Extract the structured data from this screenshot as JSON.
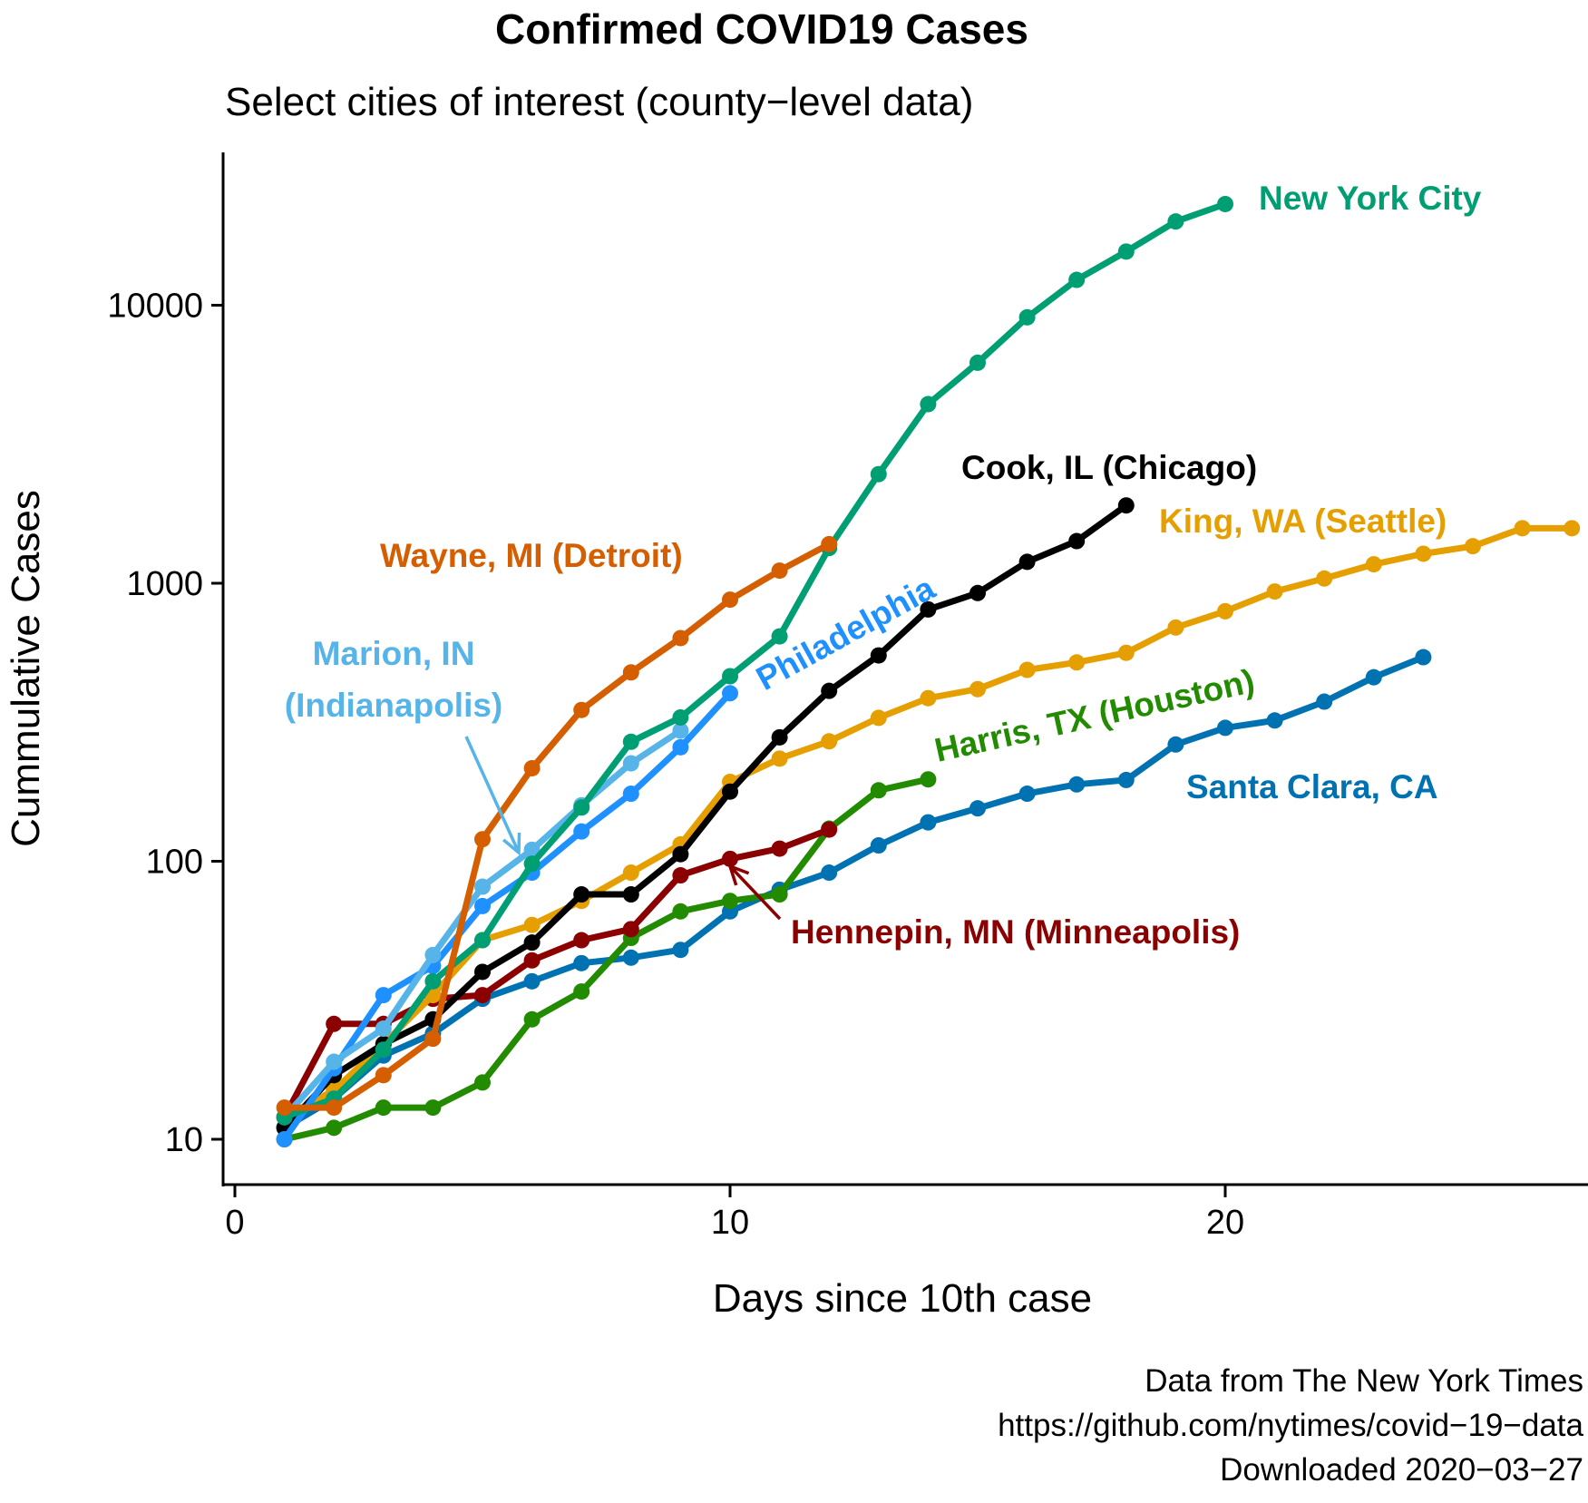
{
  "chart_data": {
    "type": "line",
    "title": "Confirmed COVID19 Cases",
    "subtitle": "Select cities of interest (county−level data)",
    "xlabel": "Days since 10th case",
    "ylabel": "Cummulative Cases",
    "x_ticks": [
      "0",
      "10",
      "20"
    ],
    "y_ticks": [
      "10",
      "100",
      "1000",
      "10000"
    ],
    "x_scale": "linear",
    "y_scale": "log10",
    "xlim": [
      -0.2,
      27.5
    ],
    "ylim": [
      8.1,
      30000
    ],
    "grid": false,
    "legend": "none (direct labels)",
    "caption": [
      "Data from The New York Times",
      "https://github.com/nytimes/covid−19−data",
      "Downloaded 2020−03−27"
    ],
    "series": [
      {
        "name": "Santa Clara, CA",
        "color": "#0072B2",
        "x": [
          1,
          2,
          3,
          4,
          5,
          6,
          7,
          8,
          9,
          10,
          11,
          12,
          13,
          14,
          15,
          16,
          17,
          18,
          19,
          20,
          21,
          22,
          23,
          24
        ],
        "y": [
          11,
          14,
          20,
          24,
          32,
          37,
          43,
          45,
          48,
          66,
          79,
          91,
          114,
          138,
          155,
          175,
          189,
          196,
          263,
          302,
          321,
          375,
          459,
          542
        ]
      },
      {
        "name": "Harris, TX (Houston)",
        "color": "#228B00",
        "x": [
          1,
          2,
          3,
          4,
          5,
          6,
          7,
          8,
          9,
          10,
          11,
          12,
          13,
          14
        ],
        "y": [
          10,
          11,
          13,
          13,
          16,
          27,
          34,
          53,
          66,
          72,
          76,
          131,
          180,
          197
        ]
      },
      {
        "name": "Hennepin, MN (Minneapolis)",
        "color": "#8B0000",
        "x": [
          1,
          2,
          3,
          4,
          5,
          6,
          7,
          8,
          9,
          10,
          11,
          12
        ],
        "y": [
          12,
          26,
          26,
          32,
          33,
          44,
          52,
          57,
          89,
          102,
          111,
          130
        ]
      },
      {
        "name": "King, WA (Seattle)",
        "color": "#E69F00",
        "x": [
          1,
          2,
          3,
          4,
          5,
          6,
          7,
          8,
          9,
          10,
          11,
          12,
          13,
          14,
          15,
          16,
          17,
          18,
          19,
          20,
          21,
          22,
          23,
          24,
          25,
          26,
          27
        ],
        "y": [
          12,
          15,
          22,
          33,
          52,
          59,
          72,
          91,
          115,
          193,
          234,
          270,
          328,
          386,
          416,
          488,
          519,
          562,
          693,
          793,
          934,
          1040,
          1170,
          1277,
          1359,
          1577,
          1577
        ]
      },
      {
        "name": "Cook, IL (Chicago)",
        "color": "#000000",
        "x": [
          1,
          2,
          3,
          4,
          5,
          6,
          7,
          8,
          9,
          10,
          11,
          12,
          13,
          14,
          15,
          16,
          17,
          18
        ],
        "y": [
          11,
          17,
          22,
          27,
          40,
          51,
          76,
          76,
          106,
          178,
          279,
          410,
          550,
          805,
          922,
          1194,
          1418,
          1905
        ]
      },
      {
        "name": "Philadelphia",
        "color": "#1E90FF",
        "x": [
          1,
          2,
          3,
          4,
          5,
          6,
          7,
          8,
          9,
          10
        ],
        "y": [
          10,
          18,
          33,
          42,
          69,
          91,
          128,
          175,
          257,
          402
        ]
      },
      {
        "name": "Marion, IN (Indianapolis)",
        "color": "#56B4E9",
        "x": [
          1,
          2,
          3,
          4,
          5,
          6,
          7,
          8,
          9
        ],
        "y": [
          12,
          19,
          25,
          46,
          81,
          110,
          159,
          225,
          295
        ]
      },
      {
        "name": "New York City",
        "color": "#009E73",
        "x": [
          1,
          2,
          3,
          4,
          5,
          6,
          7,
          8,
          9,
          10,
          11,
          12,
          13,
          14,
          15,
          16,
          17,
          18,
          19,
          20
        ],
        "y": [
          12,
          14,
          21,
          37,
          52,
          98,
          156,
          269,
          329,
          463,
          644,
          1339,
          2469,
          4408,
          6211,
          9045,
          12339,
          15597,
          20011,
          23112
        ]
      },
      {
        "name": "Wayne, MI (Detroit)",
        "color": "#D55E00",
        "x": [
          1,
          2,
          3,
          4,
          5,
          6,
          7,
          8,
          9,
          10,
          11,
          12
        ],
        "y": [
          13,
          13,
          17,
          23,
          120,
          216,
          350,
          478,
          635,
          873,
          1110,
          1382
        ]
      }
    ]
  }
}
